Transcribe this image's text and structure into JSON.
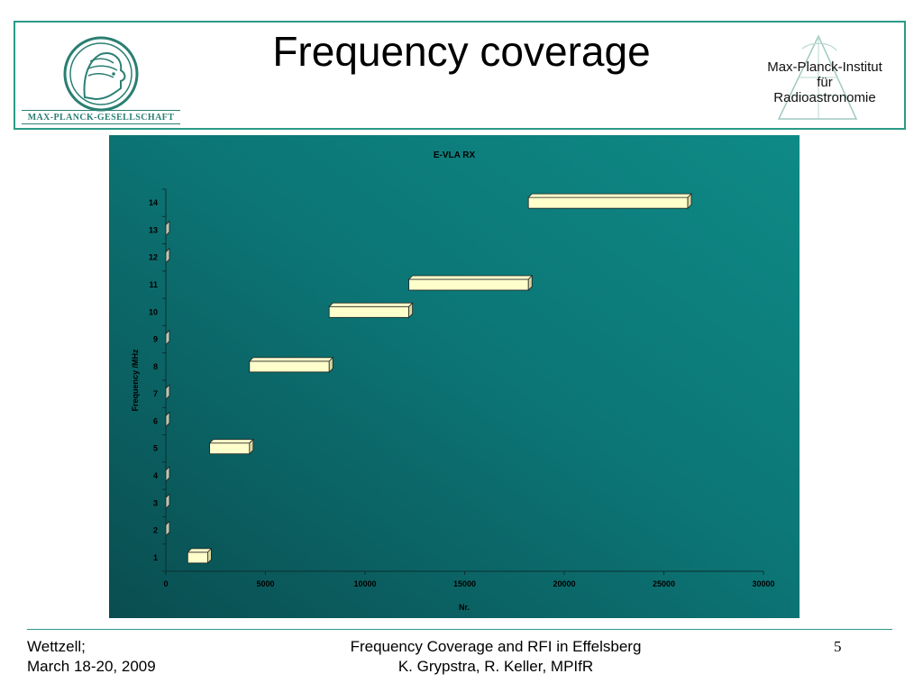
{
  "header": {
    "title": "Frequency coverage",
    "left_logo": {
      "icon": "minerva-head-icon",
      "name": "MAX-PLANCK-GESELLSCHAFT"
    },
    "right_logo": {
      "icon": "antenna-triangle-icon",
      "lines": [
        "Max-Planck-Institut",
        "für",
        "Radioastronomie"
      ]
    }
  },
  "colors": {
    "frame": "#2a9a86",
    "chart_bg_light": "#0d8a86",
    "chart_bg_dark": "#0a4a4c",
    "bar_fill": "#ffffcc",
    "bar_side": "#d8d8a0",
    "axis_text": "#000000"
  },
  "chart_data": {
    "type": "bar",
    "orientation": "horizontal-floating",
    "title": "E-VLA RX",
    "xlabel": "Nr.",
    "ylabel": "Frequency /MHz",
    "xlim": [
      0,
      30000
    ],
    "xticks": [
      0,
      5000,
      10000,
      15000,
      20000,
      25000,
      30000
    ],
    "categories": [
      "1",
      "2",
      "3",
      "4",
      "5",
      "6",
      "7",
      "8",
      "9",
      "10",
      "11",
      "12",
      "13",
      "14"
    ],
    "ranges": [
      [
        1100,
        2100
      ],
      [
        0,
        0
      ],
      [
        0,
        0
      ],
      [
        0,
        0
      ],
      [
        2200,
        4200
      ],
      [
        0,
        0
      ],
      [
        0,
        0
      ],
      [
        4200,
        8200
      ],
      [
        0,
        0
      ],
      [
        8200,
        12200
      ],
      [
        12200,
        18200
      ],
      [
        0,
        0
      ],
      [
        0,
        0
      ],
      [
        18200,
        26200
      ]
    ],
    "grid": false,
    "legend": "none"
  },
  "footer": {
    "left_line1": "Wettzell;",
    "left_line2": "March 18-20, 2009",
    "center_line1": "Frequency Coverage and RFI in Effelsberg",
    "center_line2": "K. Grypstra, R. Keller, MPIfR",
    "page": "5"
  }
}
